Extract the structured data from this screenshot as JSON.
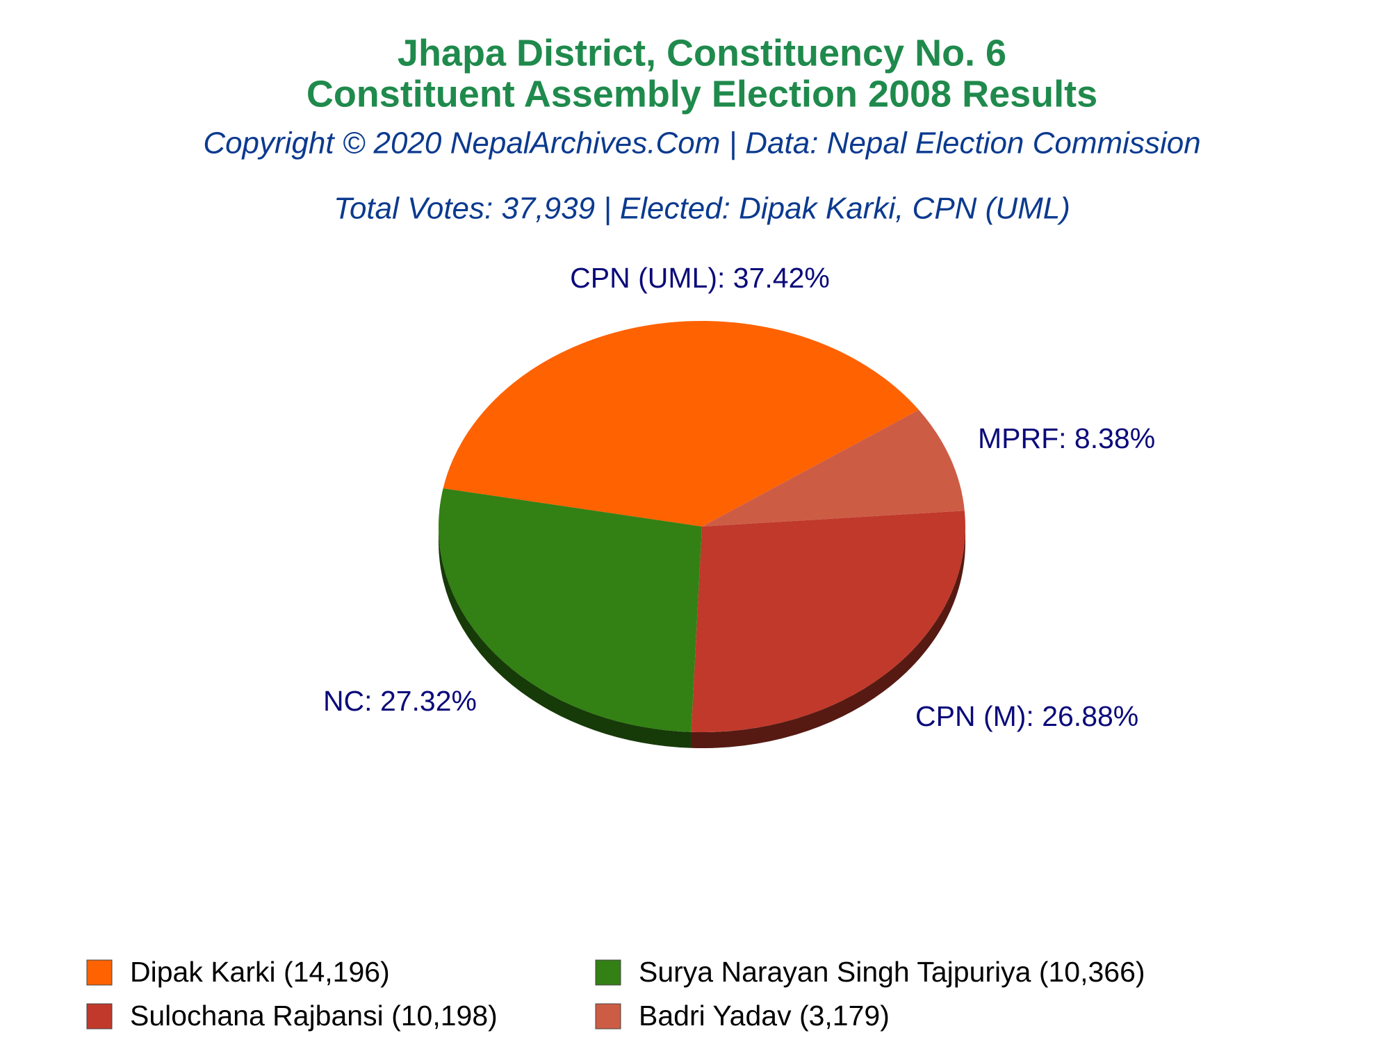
{
  "chart_data": {
    "type": "pie",
    "title": [
      "Jhapa District, Constituency No. 6",
      "Constituent Assembly Election 2008 Results"
    ],
    "subtitle": [
      "Copyright © 2020 NepalArchives.Com | Data: Nepal Election Commission",
      "Total Votes: 37,939 | Elected: Dipak Karki, CPN (UML)"
    ],
    "categories": [
      "CPN (UML)",
      "MPRF",
      "CPN (M)",
      "NC"
    ],
    "values": [
      37.42,
      8.38,
      26.88,
      27.32
    ],
    "value_labels": [
      "CPN (UML): 37.42%",
      "MPRF: 8.38%",
      "CPN (M): 26.88%",
      "NC: 27.32%"
    ],
    "colors": [
      "#ff6200",
      "#cd5c45",
      "#c0392b",
      "#338015"
    ],
    "legend": [
      {
        "name": "Dipak Karki (14,196)",
        "color": "#ff6200"
      },
      {
        "name": "Surya Narayan Singh Tajpuriya (10,366)",
        "color": "#338015"
      },
      {
        "name": "Sulochana Rajbansi (10,198)",
        "color": "#c0392b"
      },
      {
        "name": "Badri Yadav (3,179)",
        "color": "#cd5c45"
      }
    ]
  }
}
